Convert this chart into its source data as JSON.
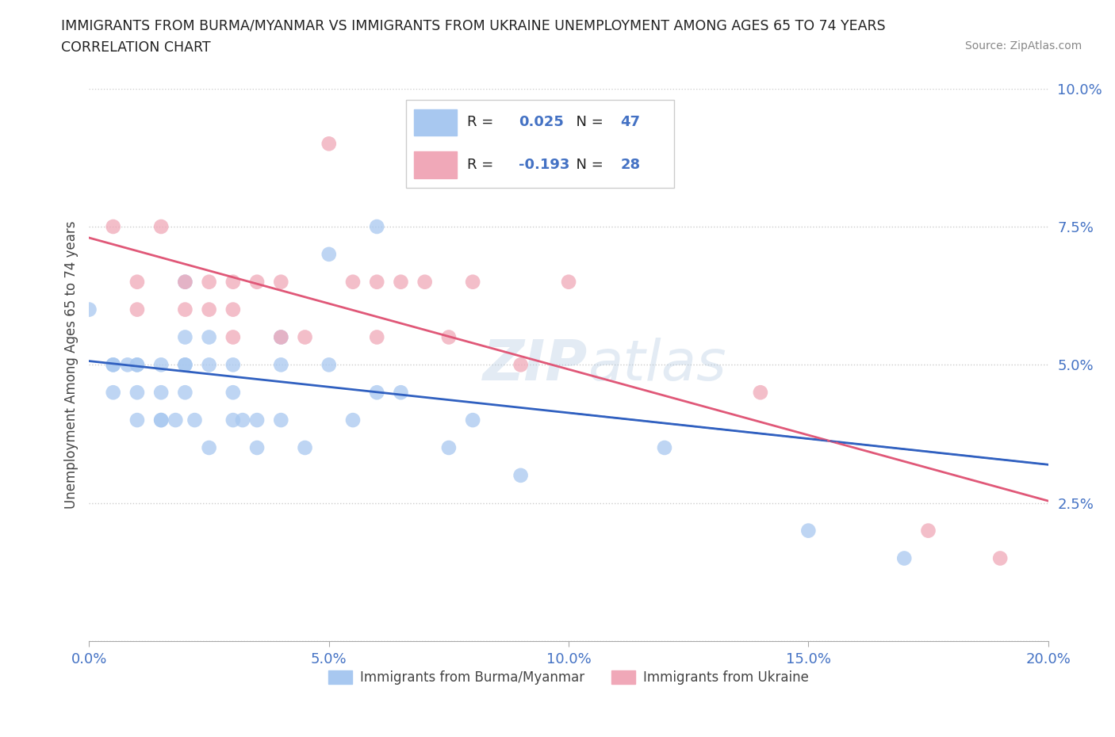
{
  "title_line1": "IMMIGRANTS FROM BURMA/MYANMAR VS IMMIGRANTS FROM UKRAINE UNEMPLOYMENT AMONG AGES 65 TO 74 YEARS",
  "title_line2": "CORRELATION CHART",
  "source_text": "Source: ZipAtlas.com",
  "ylabel": "Unemployment Among Ages 65 to 74 years",
  "xlim": [
    0.0,
    0.2
  ],
  "ylim": [
    0.0,
    0.1
  ],
  "xticks": [
    0.0,
    0.05,
    0.1,
    0.15,
    0.2
  ],
  "xtick_labels": [
    "0.0%",
    "5.0%",
    "10.0%",
    "15.0%",
    "20.0%"
  ],
  "yticks": [
    0.0,
    0.025,
    0.05,
    0.075,
    0.1
  ],
  "ytick_labels": [
    "",
    "2.5%",
    "5.0%",
    "7.5%",
    "10.0%"
  ],
  "burma_R": 0.025,
  "burma_N": 47,
  "ukraine_R": -0.193,
  "ukraine_N": 28,
  "burma_color": "#a8c8f0",
  "ukraine_color": "#f0a8b8",
  "burma_line_color": "#3060c0",
  "ukraine_line_color": "#e05878",
  "watermark": "ZIPatlas",
  "burma_x": [
    0.0,
    0.005,
    0.005,
    0.005,
    0.008,
    0.01,
    0.01,
    0.01,
    0.01,
    0.015,
    0.015,
    0.015,
    0.015,
    0.018,
    0.02,
    0.02,
    0.02,
    0.02,
    0.02,
    0.022,
    0.025,
    0.025,
    0.025,
    0.03,
    0.03,
    0.03,
    0.032,
    0.035,
    0.035,
    0.04,
    0.04,
    0.04,
    0.045,
    0.05,
    0.05,
    0.055,
    0.06,
    0.06,
    0.065,
    0.07,
    0.075,
    0.08,
    0.09,
    0.1,
    0.12,
    0.15,
    0.17
  ],
  "burma_y": [
    0.06,
    0.05,
    0.05,
    0.045,
    0.05,
    0.05,
    0.05,
    0.045,
    0.04,
    0.05,
    0.045,
    0.04,
    0.04,
    0.04,
    0.065,
    0.055,
    0.05,
    0.05,
    0.045,
    0.04,
    0.055,
    0.05,
    0.035,
    0.05,
    0.045,
    0.04,
    0.04,
    0.04,
    0.035,
    0.055,
    0.05,
    0.04,
    0.035,
    0.07,
    0.05,
    0.04,
    0.075,
    0.045,
    0.045,
    0.09,
    0.035,
    0.04,
    0.03,
    0.085,
    0.035,
    0.02,
    0.015
  ],
  "ukraine_x": [
    0.005,
    0.01,
    0.01,
    0.015,
    0.02,
    0.02,
    0.025,
    0.025,
    0.03,
    0.03,
    0.03,
    0.035,
    0.04,
    0.04,
    0.045,
    0.05,
    0.055,
    0.06,
    0.06,
    0.065,
    0.07,
    0.075,
    0.08,
    0.09,
    0.1,
    0.14,
    0.175,
    0.19
  ],
  "ukraine_y": [
    0.075,
    0.065,
    0.06,
    0.075,
    0.065,
    0.06,
    0.065,
    0.06,
    0.065,
    0.06,
    0.055,
    0.065,
    0.065,
    0.055,
    0.055,
    0.09,
    0.065,
    0.065,
    0.055,
    0.065,
    0.065,
    0.055,
    0.065,
    0.05,
    0.065,
    0.045,
    0.02,
    0.015
  ]
}
